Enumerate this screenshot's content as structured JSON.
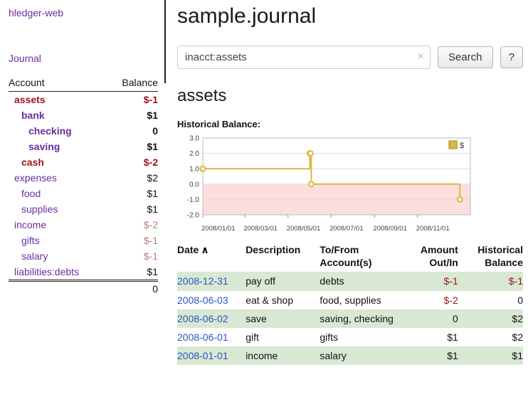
{
  "sidebar": {
    "title": "hledger-web",
    "nav": {
      "journal": "Journal"
    },
    "accounts": {
      "col_account": "Account",
      "col_balance": "Balance",
      "rows": [
        {
          "name": "assets",
          "balance": "$-1",
          "indent": 0,
          "bold": true,
          "name_neg": true,
          "bal_neg": true
        },
        {
          "name": "bank",
          "balance": "$1",
          "indent": 1,
          "bold": true
        },
        {
          "name": "checking",
          "balance": "0",
          "indent": 2,
          "bold": true
        },
        {
          "name": "saving",
          "balance": "$1",
          "indent": 2,
          "bold": true
        },
        {
          "name": "cash",
          "balance": "$-2",
          "indent": 1,
          "bold": true,
          "name_neg": true,
          "bal_neg": true
        },
        {
          "name": "expenses",
          "balance": "$2",
          "indent": 0
        },
        {
          "name": "food",
          "balance": "$1",
          "indent": 1
        },
        {
          "name": "supplies",
          "balance": "$1",
          "indent": 1
        },
        {
          "name": "income",
          "balance": "$-2",
          "indent": 0,
          "bal_neg_soft": true
        },
        {
          "name": "gifts",
          "balance": "$-1",
          "indent": 1,
          "bal_neg_soft": true
        },
        {
          "name": "salary",
          "balance": "$-1",
          "indent": 1,
          "bal_neg_soft": true
        },
        {
          "name": "liabilities:debts",
          "balance": "$1",
          "indent": 0
        }
      ],
      "total": "0"
    }
  },
  "main": {
    "title": "sample.journal",
    "search": {
      "value": "inacct:assets",
      "clear": "×",
      "search_button": "Search",
      "help_button": "?"
    },
    "account_heading": "assets",
    "chart_label": "Historical Balance:"
  },
  "chart_data": {
    "type": "line",
    "step": true,
    "title": "Historical Balance:",
    "series": [
      {
        "name": "$",
        "points": [
          [
            "2008-01-01",
            1
          ],
          [
            "2008-06-01",
            2
          ],
          [
            "2008-06-02",
            2
          ],
          [
            "2008-06-03",
            0
          ],
          [
            "2008-12-31",
            -1
          ]
        ]
      }
    ],
    "x_ticks": [
      "2008/01/01",
      "2008/03/01",
      "2008/05/01",
      "2008/07/01",
      "2008/09/01",
      "2008/11/01"
    ],
    "y_ticks": [
      3.0,
      2.0,
      1.0,
      0.0,
      -1.0,
      -2.0
    ],
    "ylim": [
      -2,
      3
    ],
    "xlim": [
      "2008-01-01",
      "2009-01-15"
    ],
    "legend": {
      "label": "$",
      "position": "top-right"
    },
    "grid": true
  },
  "register": {
    "columns": [
      "Date",
      "Description",
      "To/From Account(s)",
      "Amount Out/In",
      "Historical Balance"
    ],
    "sort": {
      "column": "Date",
      "direction": "asc",
      "icon": "∧"
    },
    "rows": [
      {
        "date": "2008-12-31",
        "description": "pay off",
        "accounts": "debts",
        "amount": "$-1",
        "balance": "$-1"
      },
      {
        "date": "2008-06-03",
        "description": "eat & shop",
        "accounts": "food, supplies",
        "amount": "$-2",
        "balance": "0"
      },
      {
        "date": "2008-06-02",
        "description": "save",
        "accounts": "saving, checking",
        "amount": "0",
        "balance": "$2"
      },
      {
        "date": "2008-06-01",
        "description": "gift",
        "accounts": "gifts",
        "amount": "$1",
        "balance": "$2"
      },
      {
        "date": "2008-01-01",
        "description": "income",
        "accounts": "salary",
        "amount": "$1",
        "balance": "$1"
      }
    ]
  },
  "colors": {
    "link_purple": "#6a2ca0",
    "date_link_blue": "#2a56c6",
    "negative_red": "#9e1316",
    "negative_soft_red": "#b97c7c",
    "row_green": "#d9e8d3",
    "chart_line_gold": "#d9b846",
    "chart_negative_fill": "#fcdede"
  }
}
